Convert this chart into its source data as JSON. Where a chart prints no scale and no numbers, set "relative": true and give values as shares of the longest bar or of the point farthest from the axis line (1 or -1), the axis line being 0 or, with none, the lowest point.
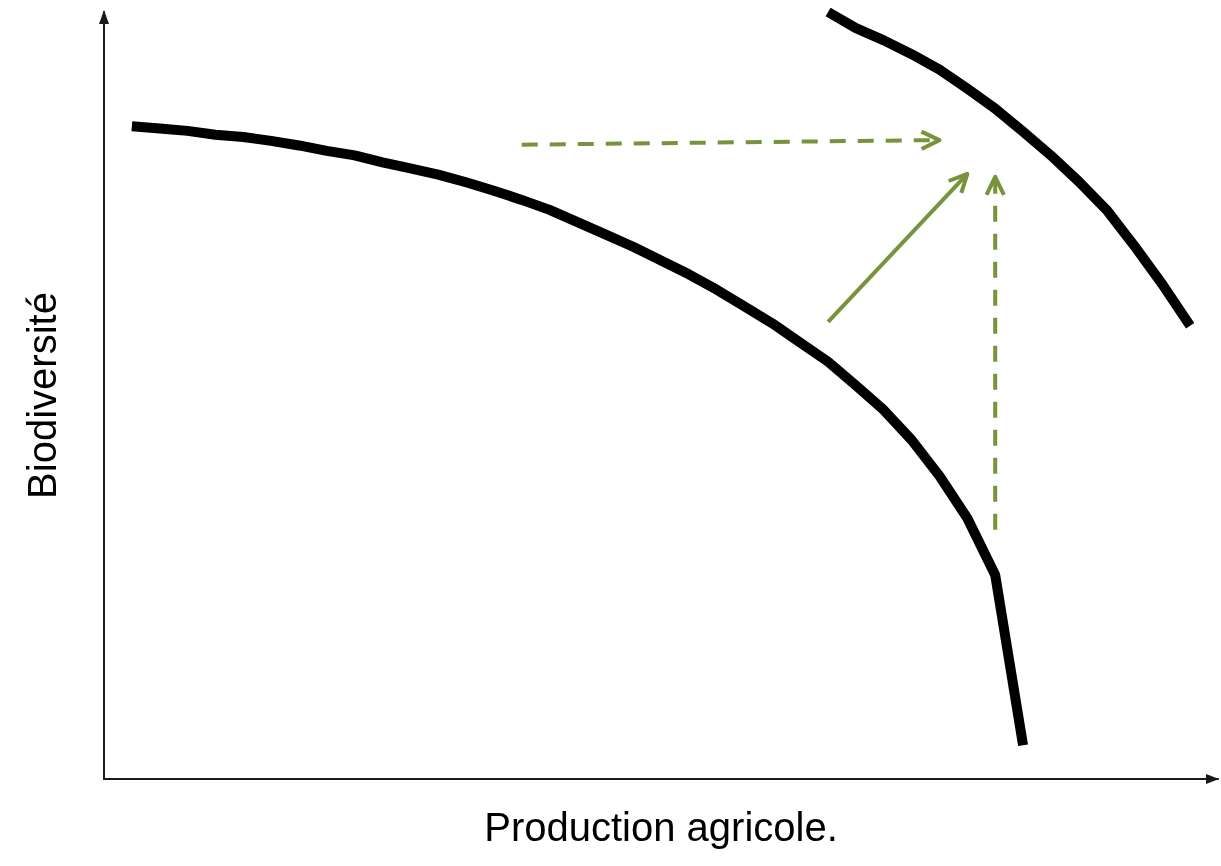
{
  "chart_data": {
    "type": "line",
    "relative": true,
    "xlabel": "Production agricole.",
    "ylabel": "Biodiversité",
    "grid": false,
    "marker": "none",
    "line_style": "solid",
    "categories": [
      null,
      null,
      null,
      null,
      null,
      null,
      null,
      null,
      null,
      null,
      null,
      null,
      null,
      null,
      null,
      null,
      null,
      null,
      null,
      null,
      null,
      null,
      null,
      null,
      null,
      null,
      null,
      null,
      null,
      null,
      null,
      null,
      null,
      null,
      null,
      null,
      null,
      null,
      null,
      null,
      null
    ],
    "series": [
      {
        "color": "#000000",
        "values": [
          null,
          0.851,
          0.848,
          0.845,
          0.84,
          0.837,
          0.832,
          0.826,
          0.819,
          0.813,
          0.804,
          0.796,
          0.788,
          0.778,
          0.767,
          0.755,
          0.742,
          0.726,
          0.71,
          0.694,
          0.676,
          0.658,
          0.638,
          0.616,
          0.594,
          0.569,
          0.544,
          0.513,
          0.481,
          0.442,
          0.395,
          0.34,
          0.266,
          0.044,
          null,
          null,
          null,
          null,
          null,
          null,
          null
        ]
      },
      {
        "color": "#000000",
        "values": [
          null,
          null,
          null,
          null,
          null,
          null,
          null,
          null,
          null,
          null,
          null,
          null,
          null,
          null,
          null,
          null,
          null,
          null,
          null,
          null,
          null,
          null,
          null,
          null,
          null,
          null,
          1.0,
          0.979,
          0.963,
          0.945,
          0.925,
          0.9,
          0.874,
          0.844,
          0.813,
          0.779,
          0.742,
          0.695,
          0.645,
          0.591,
          null
        ]
      }
    ]
  }
}
